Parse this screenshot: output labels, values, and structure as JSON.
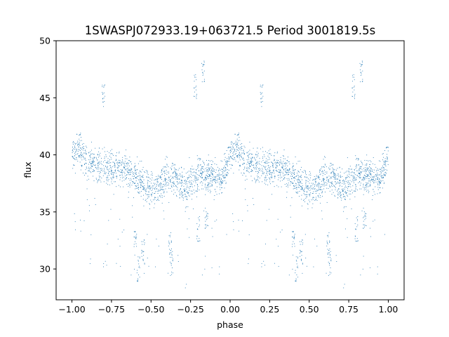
{
  "chart_data": {
    "type": "scatter",
    "title": "1SWASPJ072933.19+063721.5 Period 3001819.5s",
    "xlabel": "phase",
    "ylabel": "flux",
    "xlim": [
      -1.1,
      1.1
    ],
    "ylim": [
      27.3,
      50.0
    ],
    "xticks": [
      -1.0,
      -0.75,
      -0.5,
      -0.25,
      0.0,
      0.25,
      0.5,
      0.75,
      1.0
    ],
    "xtick_labels": [
      "−1.00",
      "−0.75",
      "−0.50",
      "−0.25",
      "0.00",
      "0.25",
      "0.50",
      "0.75",
      "1.00"
    ],
    "yticks": [
      30,
      35,
      40,
      45,
      50
    ],
    "ytick_labels": [
      "30",
      "35",
      "40",
      "45",
      "50"
    ],
    "grid": false,
    "point_color": "#1f77b4",
    "series": [
      {
        "phase_profile": [
          {
            "x": 0.0,
            "y": 40.0
          },
          {
            "x": 0.05,
            "y": 40.6
          },
          {
            "x": 0.1,
            "y": 39.2
          },
          {
            "x": 0.2,
            "y": 39.0
          },
          {
            "x": 0.3,
            "y": 38.8
          },
          {
            "x": 0.4,
            "y": 38.2
          },
          {
            "x": 0.45,
            "y": 37.5
          },
          {
            "x": 0.5,
            "y": 37.0
          },
          {
            "x": 0.55,
            "y": 37.2
          },
          {
            "x": 0.6,
            "y": 38.2
          },
          {
            "x": 0.65,
            "y": 38.0
          },
          {
            "x": 0.72,
            "y": 37.0
          },
          {
            "x": 0.8,
            "y": 38.5
          },
          {
            "x": 0.85,
            "y": 38.0
          },
          {
            "x": 0.9,
            "y": 38.2
          },
          {
            "x": 0.95,
            "y": 37.8
          },
          {
            "x": 1.0,
            "y": 40.0
          }
        ],
        "outlier_groups": [
          {
            "x": 0.78,
            "y": 46.0
          },
          {
            "x": 0.83,
            "y": 47.5
          },
          {
            "x": 0.8,
            "y": 33.5
          },
          {
            "x": 0.85,
            "y": 34.5
          },
          {
            "x": 0.45,
            "y": 31.5
          },
          {
            "x": 0.4,
            "y": 32.5
          },
          {
            "x": 0.62,
            "y": 32.0
          },
          {
            "x": 0.63,
            "y": 30.5
          },
          {
            "x": 0.2,
            "y": 45.3
          },
          {
            "x": 0.42,
            "y": 30.0
          }
        ]
      }
    ]
  }
}
